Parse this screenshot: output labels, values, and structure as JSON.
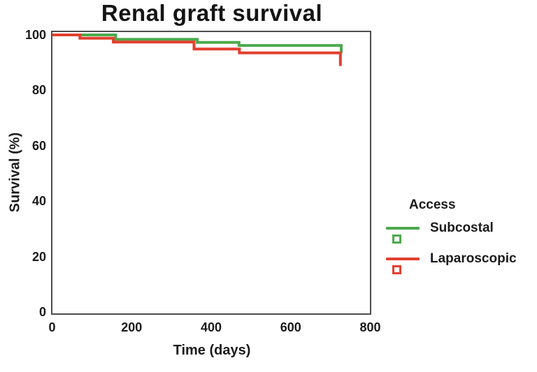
{
  "chart_data": {
    "type": "line",
    "subtype": "kaplan-meier-step",
    "title": "Renal graft survival",
    "xlabel": "Time (days)",
    "ylabel": "Survival (%)",
    "xlim": [
      0,
      800
    ],
    "ylim": [
      0,
      100
    ],
    "x_ticks": [
      0,
      200,
      400,
      600,
      800
    ],
    "y_ticks": [
      100,
      80,
      60,
      40,
      20,
      0
    ],
    "grid": "off",
    "frame": "full-box",
    "legend_title": "Access",
    "legend_position": "right-outside",
    "legend_marker": "open-square",
    "series": [
      {
        "name": "Subcostal",
        "color": "#4ca94c",
        "points": [
          [
            0,
            100
          ],
          [
            160,
            100
          ],
          [
            160,
            98.4
          ],
          [
            365,
            98.4
          ],
          [
            365,
            97.3
          ],
          [
            470,
            97.3
          ],
          [
            470,
            96.2
          ],
          [
            727,
            96.2
          ],
          [
            727,
            93.4
          ]
        ]
      },
      {
        "name": "Laparoscopic",
        "color": "#e2402f",
        "points": [
          [
            0,
            100
          ],
          [
            70,
            100
          ],
          [
            70,
            98.8
          ],
          [
            154,
            98.8
          ],
          [
            154,
            97.4
          ],
          [
            357,
            97.4
          ],
          [
            357,
            94.9
          ],
          [
            471,
            94.9
          ],
          [
            471,
            93.5
          ],
          [
            725,
            93.5
          ],
          [
            725,
            88.8
          ]
        ]
      }
    ],
    "frame_color": "#4d4d4d",
    "text_color": "#1b1b1b"
  }
}
